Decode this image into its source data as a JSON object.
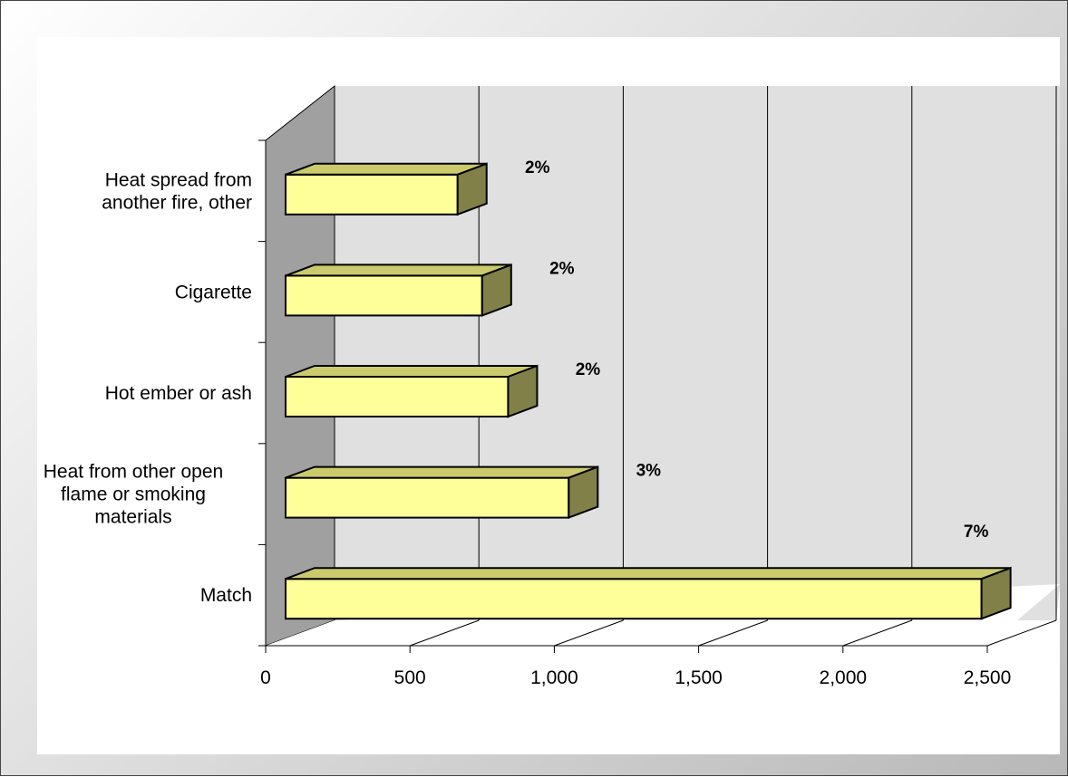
{
  "chart_data": {
    "type": "bar",
    "orientation": "horizontal",
    "style": "3d",
    "categories": [
      "Match",
      "Heat from other open flame or smoking materials",
      "Hot ember or ash",
      "Cigarette",
      "Heat spread from another fire, other"
    ],
    "category_label_lines": [
      [
        "Match"
      ],
      [
        "Heat from other open",
        "flame or smoking",
        "materials"
      ],
      [
        "Hot ember or ash"
      ],
      [
        "Cigarette"
      ],
      [
        "Heat spread from",
        "another fire, other"
      ]
    ],
    "values": [
      2480,
      1050,
      840,
      750,
      665
    ],
    "data_labels": [
      "7%",
      "3%",
      "2%",
      "2%",
      "2%"
    ],
    "xlim": [
      0,
      2500
    ],
    "x_ticks": [
      0,
      500,
      1000,
      1500,
      2000,
      2500
    ],
    "x_tick_labels": [
      "0",
      "500",
      "1,000",
      "1,500",
      "2,000",
      "2,500"
    ],
    "grid": "vertical",
    "legend": "none",
    "colors": {
      "bar_front": "#ffff99",
      "bar_top": "#cbcb6e",
      "bar_side": "#808048",
      "wall": "#e0e0e0",
      "side_wall": "#a0a0a0"
    }
  }
}
